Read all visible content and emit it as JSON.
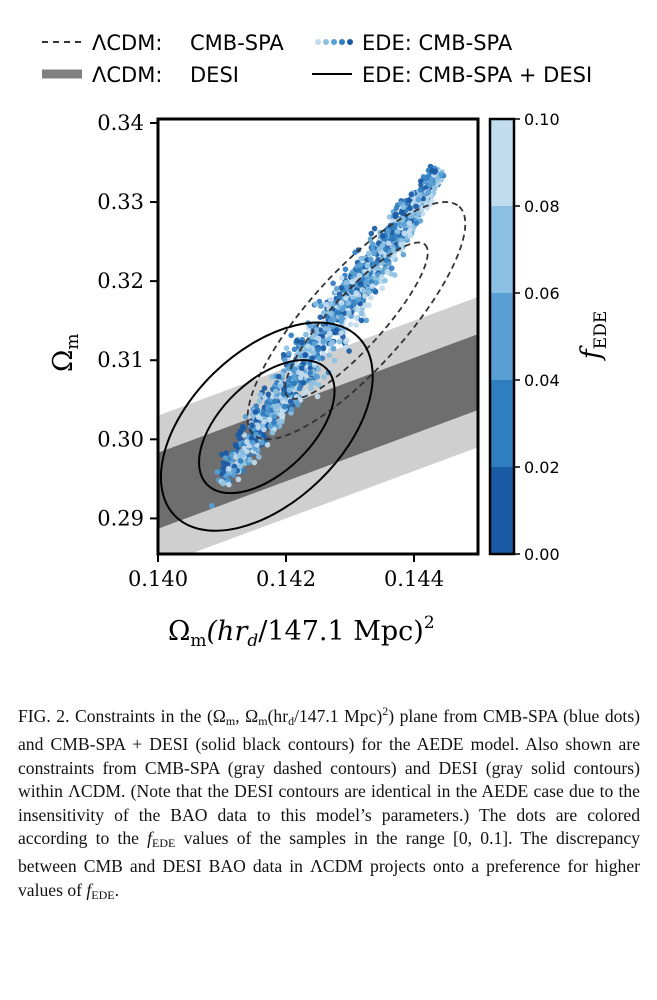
{
  "figure": {
    "legend": {
      "items": [
        {
          "prefix": "ΛCDM:",
          "text": "CMB-SPA",
          "style": "dashed"
        },
        {
          "prefix": "ΛCDM:",
          "text": "DESI",
          "style": "thick-gray"
        },
        {
          "prefix": "",
          "text": "EDE: CMB-SPA",
          "style": "dots"
        },
        {
          "prefix": "",
          "text": "EDE: CMB-SPA + DESI",
          "style": "solid"
        }
      ]
    },
    "colors": {
      "dashed": "#333333",
      "desi_inner": "#6e6e6e",
      "desi_outer": "#cfcfcf",
      "solid": "#000000",
      "cmap": [
        "#1a5aa5",
        "#2f7ec0",
        "#5a9fd3",
        "#8cc0e2",
        "#c2dcef"
      ]
    },
    "xaxis": {
      "label_main": "Ω",
      "label_sub": "m",
      "label_rest": "(hr",
      "label_sub2": "d",
      "label_tail": "/147.1 Mpc)",
      "label_sup": "2"
    },
    "yaxis": {
      "label_main": "Ω",
      "label_sub": "m"
    },
    "colorbar": {
      "label_main": "f",
      "label_sub": "EDE",
      "ticks": [
        "0.10",
        "0.08",
        "0.06",
        "0.04",
        "0.02",
        "0.00"
      ]
    }
  },
  "chart_data": {
    "type": "scatter",
    "xlim": [
      0.14,
      0.145
    ],
    "ylim": [
      0.2855,
      0.3405
    ],
    "xticks": [
      "0.140",
      "0.142",
      "0.144"
    ],
    "yticks": [
      "0.34",
      "0.33",
      "0.32",
      "0.31",
      "0.30",
      "0.29"
    ],
    "colorbar_range": [
      0.0,
      0.1
    ],
    "ede_scatter_trend": {
      "x_start": 0.141,
      "y_start": 0.2945,
      "x_end": 0.1444,
      "y_end": 0.334
    },
    "lcdm_desi_band": {
      "center_start": [
        0.14,
        0.2935
      ],
      "center_end": [
        0.145,
        0.3085
      ],
      "inner_halfwidth_y": 0.0048,
      "outer_halfwidth_y": 0.0095
    },
    "lcdm_cmb_spa_contours": [
      {
        "center": [
          0.1431,
          0.315
        ],
        "angle_deg": 48,
        "a": 0.0024,
        "b": 0.00018
      },
      {
        "center": [
          0.1431,
          0.315
        ],
        "angle_deg": 48,
        "a": 0.0016,
        "b": 0.0001
      }
    ],
    "ede_cmb_spa_desi_contours": [
      {
        "center": [
          0.1417,
          0.3016
        ],
        "angle_deg": 44,
        "a": 0.002,
        "b": 0.00028
      },
      {
        "center": [
          0.1417,
          0.3016
        ],
        "angle_deg": 44,
        "a": 0.0013,
        "b": 0.00017
      }
    ]
  },
  "caption": {
    "p1": "FIG. 2. Constraints in the ",
    "p2": "(Ω",
    "p2sub": "m",
    "p3": ", Ω",
    "p3sub": "m",
    "p4": "(hr",
    "p4sub": "d",
    "p5": "/147.1 Mpc)",
    "p5sup": "2",
    "p6": ") plane from CMB-SPA (blue dots) and CMB-SPA + DESI (solid black contours) for the AEDE model. Also shown are constraints from CMB-SPA (gray dashed contours) and DESI (gray solid contours) within ΛCDM. (Note that the DESI contours are identical in the AEDE case due to the insensitivity of the BAO data to this model’s parameters.) The dots are colored according to the ",
    "p7": "f",
    "p7sub": "EDE",
    "p8": " values of the samples in the range [0, 0.1]. The discrepancy between CMB and DESI BAO data in ΛCDM projects onto a preference for higher values of ",
    "p9": "f",
    "p9sub": "EDE",
    "p10": "."
  }
}
